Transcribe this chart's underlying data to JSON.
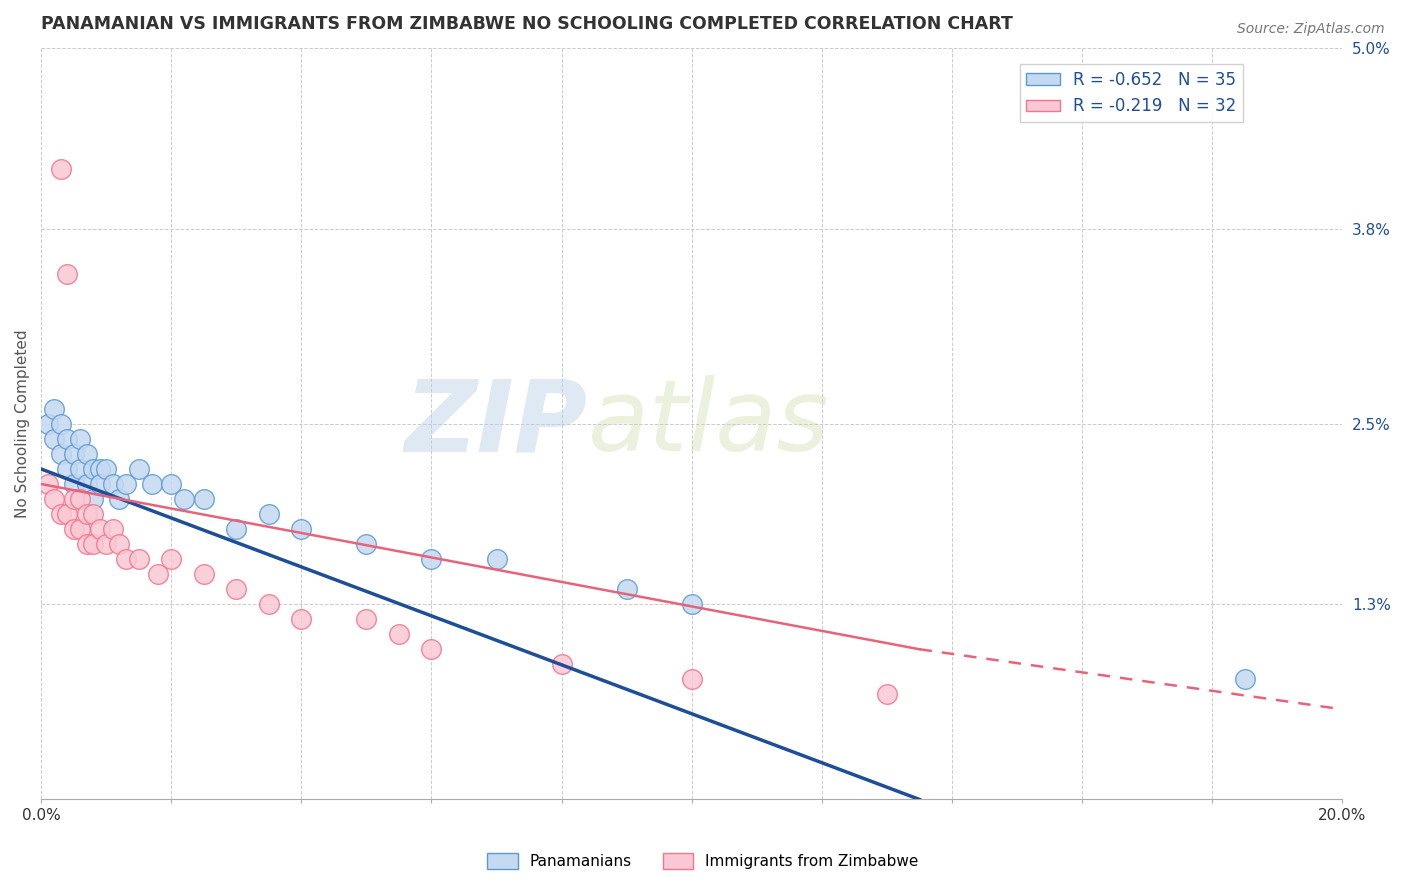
{
  "title": "PANAMANIAN VS IMMIGRANTS FROM ZIMBABWE NO SCHOOLING COMPLETED CORRELATION CHART",
  "source": "Source: ZipAtlas.com",
  "xlabel": "",
  "ylabel": "No Schooling Completed",
  "x_min": 0.0,
  "x_max": 0.2,
  "y_min": 0.0,
  "y_max": 0.05,
  "y_ticks_right": [
    0.013,
    0.025,
    0.038,
    0.05
  ],
  "y_tick_labels_right": [
    "1.3%",
    "2.5%",
    "3.8%",
    "5.0%"
  ],
  "panamanian_color": "#5b9bd5",
  "zimbabwe_color": "#f4748c",
  "panamanian_marker_face": "#c5d9f1",
  "zimbabwe_marker_face": "#fac8d4",
  "trendline_panama_color": "#1f4e99",
  "trendline_zimbabwe_color": "#e8637a",
  "watermark_zip": "ZIP",
  "watermark_atlas": "atlas",
  "legend_label1": "R = -0.652   N = 35",
  "legend_label2": "R = -0.219   N = 32",
  "legend_text_color": "#1f4e99",
  "bottom_label1": "Panamanians",
  "bottom_label2": "Immigrants from Zimbabwe",
  "panama_x": [
    0.001,
    0.002,
    0.002,
    0.003,
    0.003,
    0.004,
    0.004,
    0.005,
    0.005,
    0.006,
    0.006,
    0.007,
    0.007,
    0.008,
    0.008,
    0.009,
    0.009,
    0.01,
    0.011,
    0.012,
    0.013,
    0.015,
    0.017,
    0.02,
    0.022,
    0.025,
    0.03,
    0.035,
    0.04,
    0.05,
    0.06,
    0.07,
    0.09,
    0.1,
    0.185
  ],
  "panama_y": [
    0.025,
    0.026,
    0.024,
    0.025,
    0.023,
    0.024,
    0.022,
    0.023,
    0.021,
    0.024,
    0.022,
    0.023,
    0.021,
    0.022,
    0.02,
    0.022,
    0.021,
    0.022,
    0.021,
    0.02,
    0.021,
    0.022,
    0.021,
    0.021,
    0.02,
    0.02,
    0.018,
    0.019,
    0.018,
    0.017,
    0.016,
    0.016,
    0.014,
    0.013,
    0.008
  ],
  "zimbabwe_x": [
    0.001,
    0.002,
    0.003,
    0.003,
    0.004,
    0.004,
    0.005,
    0.005,
    0.006,
    0.006,
    0.007,
    0.007,
    0.008,
    0.008,
    0.009,
    0.01,
    0.011,
    0.012,
    0.013,
    0.015,
    0.018,
    0.02,
    0.025,
    0.03,
    0.035,
    0.04,
    0.05,
    0.055,
    0.06,
    0.08,
    0.1,
    0.13
  ],
  "zimbabwe_y": [
    0.021,
    0.02,
    0.042,
    0.019,
    0.035,
    0.019,
    0.02,
    0.018,
    0.02,
    0.018,
    0.019,
    0.017,
    0.019,
    0.017,
    0.018,
    0.017,
    0.018,
    0.017,
    0.016,
    0.016,
    0.015,
    0.016,
    0.015,
    0.014,
    0.013,
    0.012,
    0.012,
    0.011,
    0.01,
    0.009,
    0.008,
    0.007
  ],
  "trendline_panama_x0": 0.0,
  "trendline_panama_x1": 0.135,
  "trendline_panama_y0": 0.022,
  "trendline_panama_y1": 0.0,
  "trendline_zimbabwe_solid_x0": 0.0,
  "trendline_zimbabwe_solid_x1": 0.135,
  "trendline_zimbabwe_solid_y0": 0.021,
  "trendline_zimbabwe_solid_y1": 0.01,
  "trendline_zimbabwe_dash_x0": 0.135,
  "trendline_zimbabwe_dash_x1": 0.2,
  "trendline_zimbabwe_dash_y0": 0.01,
  "trendline_zimbabwe_dash_y1": 0.006
}
